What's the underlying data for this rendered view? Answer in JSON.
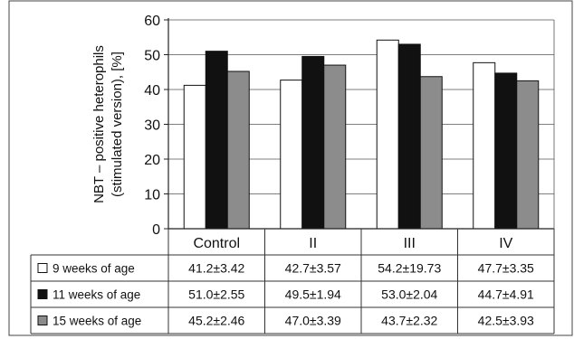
{
  "chart_data": {
    "type": "bar",
    "title": "",
    "xlabel": "",
    "ylabel_lines": [
      "NBT – positive heterophils",
      "(stimulated version), [%]"
    ],
    "categories": [
      "Control",
      "II",
      "III",
      "IV"
    ],
    "ylim": [
      0,
      60
    ],
    "yticks": [
      0,
      10,
      20,
      30,
      40,
      50,
      60
    ],
    "grid": true,
    "legend_placement": "table-below",
    "series": [
      {
        "name": "9 weeks of age",
        "color": "#ffffff",
        "values": [
          41.2,
          42.7,
          54.2,
          47.7
        ],
        "labels": [
          "41.2±3.42",
          "42.7±3.57",
          "54.2±19.73",
          "47.7±3.35"
        ]
      },
      {
        "name": "11 weeks of age",
        "color": "#111111",
        "values": [
          51.0,
          49.5,
          53.0,
          44.7
        ],
        "labels": [
          "51.0±2.55",
          "49.5±1.94",
          "53.0±2.04",
          "44.7±4.91"
        ]
      },
      {
        "name": "15 weeks of age",
        "color": "#8c8c8c",
        "values": [
          45.2,
          47.0,
          43.7,
          42.5
        ],
        "labels": [
          "45.2±2.46",
          "47.0±3.39",
          "43.7±2.32",
          "42.5±3.93"
        ]
      }
    ]
  }
}
